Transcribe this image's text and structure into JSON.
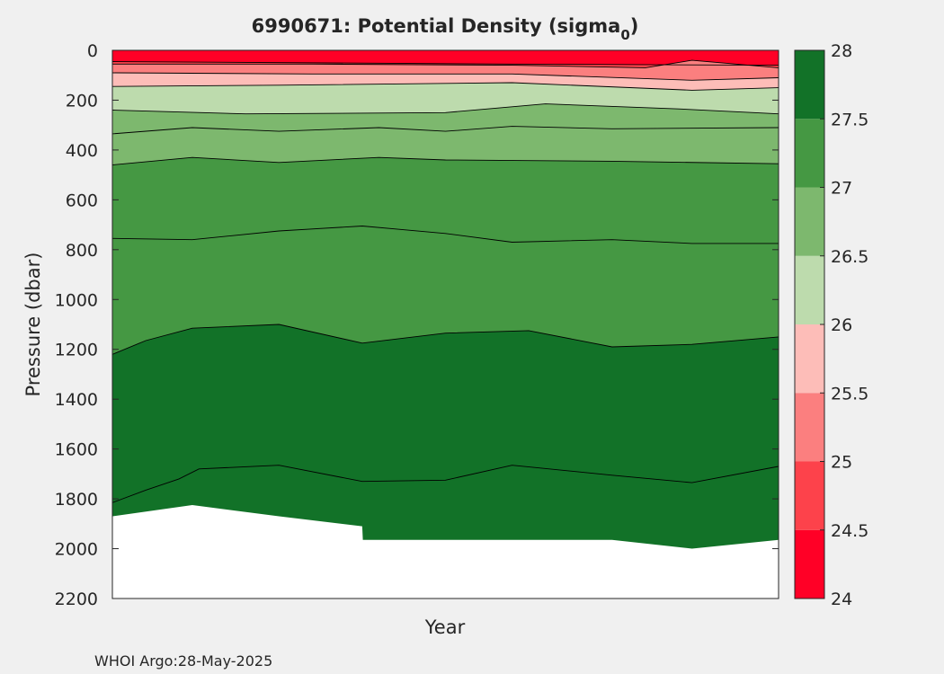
{
  "chart_data": {
    "type": "contourf",
    "title_main": "6990671: Potential Density (sigma",
    "title_sub": "0",
    "title_close": ")",
    "xlabel": "Year",
    "ylabel": "Pressure (dbar)",
    "y_reversed": true,
    "ylim": [
      0,
      2200
    ],
    "yticks": [
      0,
      200,
      400,
      600,
      800,
      1000,
      1200,
      1400,
      1600,
      1800,
      2000,
      2200
    ],
    "xlim": [
      0,
      1
    ],
    "xticks": [],
    "colorbar": {
      "clim": [
        24,
        28
      ],
      "ticks": [
        "24",
        "24.5",
        "25",
        "25.5",
        "26",
        "26.5",
        "27",
        "27.5",
        "28"
      ],
      "colors": [
        "#ff0026",
        "#fd424b",
        "#fb7f7f",
        "#fdbdb8",
        "#bddbad",
        "#7db86e",
        "#459843",
        "#127228"
      ]
    },
    "bottom_depth_profile": [
      {
        "x": 0.0,
        "p": 1870
      },
      {
        "x": 0.12,
        "p": 1825
      },
      {
        "x": 0.25,
        "p": 1870
      },
      {
        "x": 0.375,
        "p": 1910
      },
      {
        "x": 0.376,
        "p": 1965
      },
      {
        "x": 0.75,
        "p": 1965
      },
      {
        "x": 0.87,
        "p": 2000
      },
      {
        "x": 1.0,
        "p": 1965
      }
    ],
    "contours": [
      {
        "level": 24.5,
        "x": [
          0.0,
          0.6,
          1.0
        ],
        "p": [
          45,
          55,
          60
        ]
      },
      {
        "level": 25.0,
        "x": [
          0.0,
          0.3,
          0.6,
          0.8,
          0.87,
          1.0
        ],
        "p": [
          55,
          55,
          60,
          70,
          40,
          70
        ]
      },
      {
        "level": 25.5,
        "x": [
          0.0,
          0.3,
          0.6,
          0.87,
          1.0
        ],
        "p": [
          90,
          95,
          95,
          120,
          110
        ]
      },
      {
        "level": 26.0,
        "x": [
          0.0,
          0.25,
          0.6,
          0.87,
          1.0
        ],
        "p": [
          145,
          140,
          130,
          160,
          150
        ]
      },
      {
        "level": 26.5,
        "x": [
          0.0,
          0.2,
          0.5,
          0.65,
          0.85,
          1.0
        ],
        "p": [
          240,
          255,
          250,
          215,
          235,
          255
        ]
      },
      {
        "level": 26.75,
        "x": [
          0.0,
          0.12,
          0.25,
          0.4,
          0.5,
          0.6,
          0.75,
          1.0
        ],
        "p": [
          335,
          310,
          325,
          310,
          325,
          305,
          315,
          310
        ]
      },
      {
        "level": 27.0,
        "x": [
          0.0,
          0.12,
          0.25,
          0.4,
          0.5,
          0.75,
          1.0
        ],
        "p": [
          460,
          430,
          450,
          430,
          440,
          445,
          455
        ]
      },
      {
        "level": 27.25,
        "x": [
          0.0,
          0.12,
          0.25,
          0.375,
          0.5,
          0.6,
          0.75,
          0.87,
          1.0
        ],
        "p": [
          755,
          760,
          725,
          705,
          735,
          770,
          760,
          775,
          775
        ]
      },
      {
        "level": 27.5,
        "x": [
          0.0,
          0.05,
          0.12,
          0.25,
          0.375,
          0.5,
          0.625,
          0.75,
          0.87,
          1.0
        ],
        "p": [
          1220,
          1165,
          1115,
          1100,
          1175,
          1135,
          1125,
          1190,
          1180,
          1150
        ]
      },
      {
        "level": 27.75,
        "x": [
          0.0,
          0.05,
          0.1,
          0.13,
          0.25,
          0.375,
          0.5,
          0.6,
          0.75,
          0.87,
          1.0
        ],
        "p": [
          1815,
          1765,
          1720,
          1680,
          1665,
          1730,
          1725,
          1665,
          1705,
          1735,
          1670
        ]
      }
    ]
  },
  "footer": {
    "credit": "WHOI Argo:28-May-2025"
  }
}
